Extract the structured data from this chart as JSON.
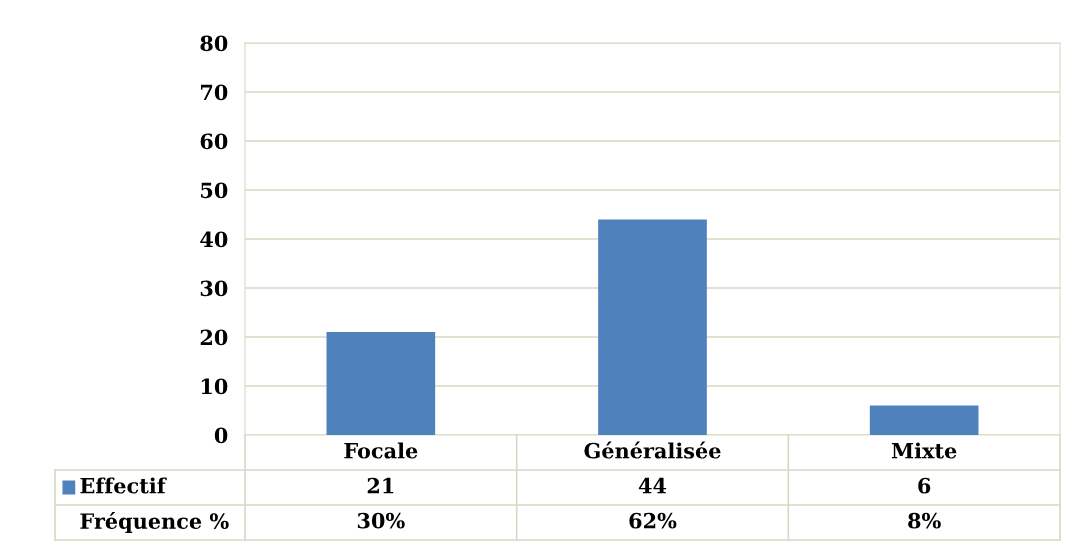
{
  "chart_data": {
    "type": "bar",
    "categories": [
      "Focale",
      "Généralisée",
      "Mixte"
    ],
    "series": [
      {
        "name": "Effectif",
        "color": "#4f81bd",
        "values": [
          21,
          44,
          6
        ]
      }
    ],
    "ylim": [
      0,
      80
    ],
    "yticks": [
      0,
      10,
      20,
      30,
      40,
      50,
      60,
      70,
      80
    ],
    "grid": "y",
    "legend": "bottom",
    "data_labels": true,
    "annotations": [
      "Fréquence %",
      "30%",
      "62%",
      "8%"
    ]
  }
}
